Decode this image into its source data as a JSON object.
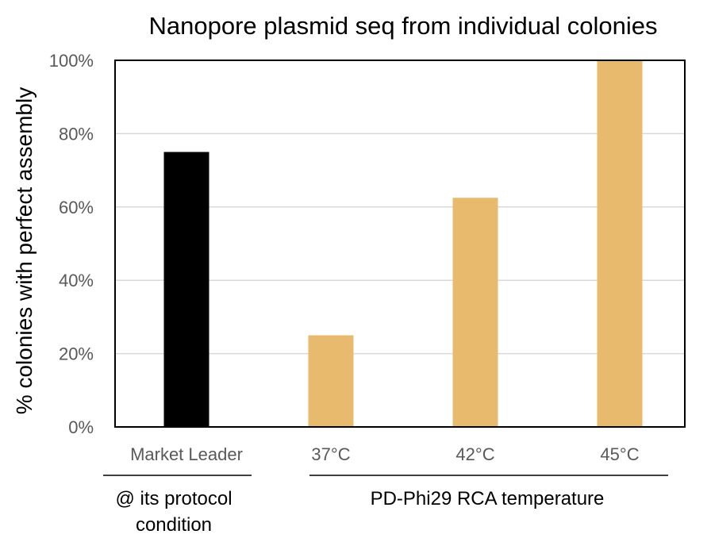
{
  "chart_data": {
    "type": "bar",
    "title": "Nanopore plasmid seq from individual colonies",
    "xlabel": "",
    "ylabel": "% colonies with perfect assembly",
    "categories": [
      "Market Leader",
      "37°C",
      "42°C",
      "45°C"
    ],
    "values": [
      75,
      25,
      62.5,
      100
    ],
    "bar_colors": [
      "#000000",
      "#e8ba6d",
      "#e8ba6d",
      "#e8ba6d"
    ],
    "ylim": [
      0,
      100
    ],
    "yticks": [
      0,
      20,
      40,
      60,
      80,
      100
    ],
    "ytick_labels": [
      "0%",
      "20%",
      "40%",
      "60%",
      "80%",
      "100%"
    ],
    "grid": "horizontal",
    "legend": "none",
    "group_labels": [
      {
        "text_lines": [
          "@ its protocol",
          "condition"
        ],
        "categories": [
          "Market Leader"
        ]
      },
      {
        "text_lines": [
          "PD-Phi29 RCA temperature"
        ],
        "categories": [
          "37°C",
          "42°C",
          "45°C"
        ]
      }
    ]
  }
}
